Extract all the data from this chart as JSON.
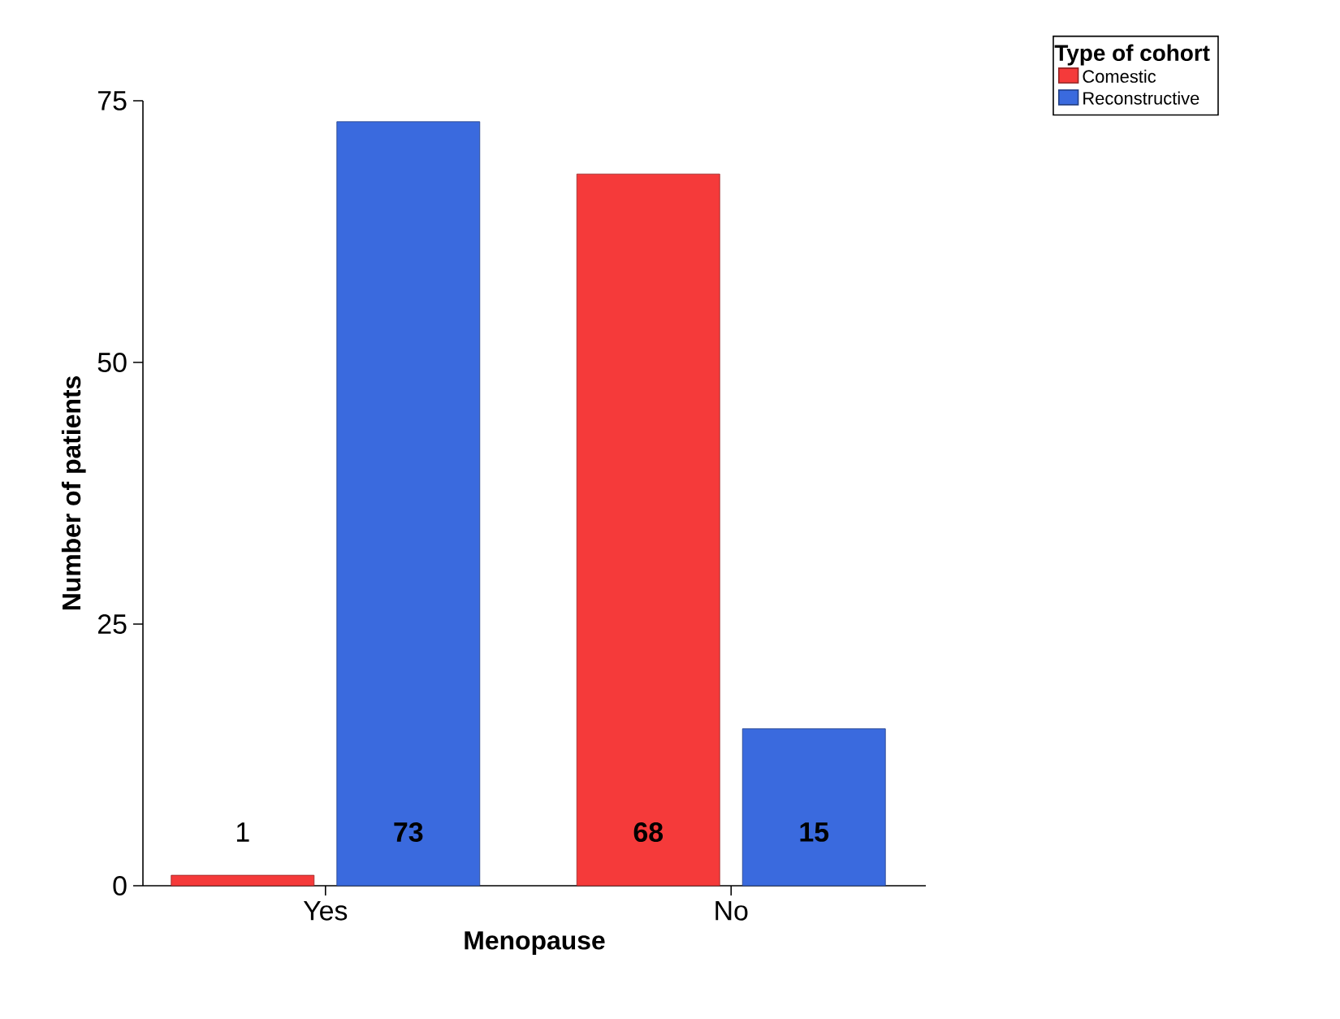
{
  "chart_data": {
    "type": "bar",
    "xlabel": "Menopause",
    "ylabel": "Number of patients",
    "legend_title": "Type of cohort",
    "categories": [
      "Yes",
      "No"
    ],
    "series": [
      {
        "name": "Comestic",
        "color": "#f53a3a",
        "values": [
          1,
          68
        ]
      },
      {
        "name": "Reconstructive",
        "color": "#3a6ade",
        "values": [
          73,
          15
        ]
      }
    ],
    "ylim": [
      0,
      75
    ],
    "yticks": [
      0,
      25,
      50,
      75
    ],
    "data_labels": true,
    "legend": "top right",
    "grid": false
  }
}
